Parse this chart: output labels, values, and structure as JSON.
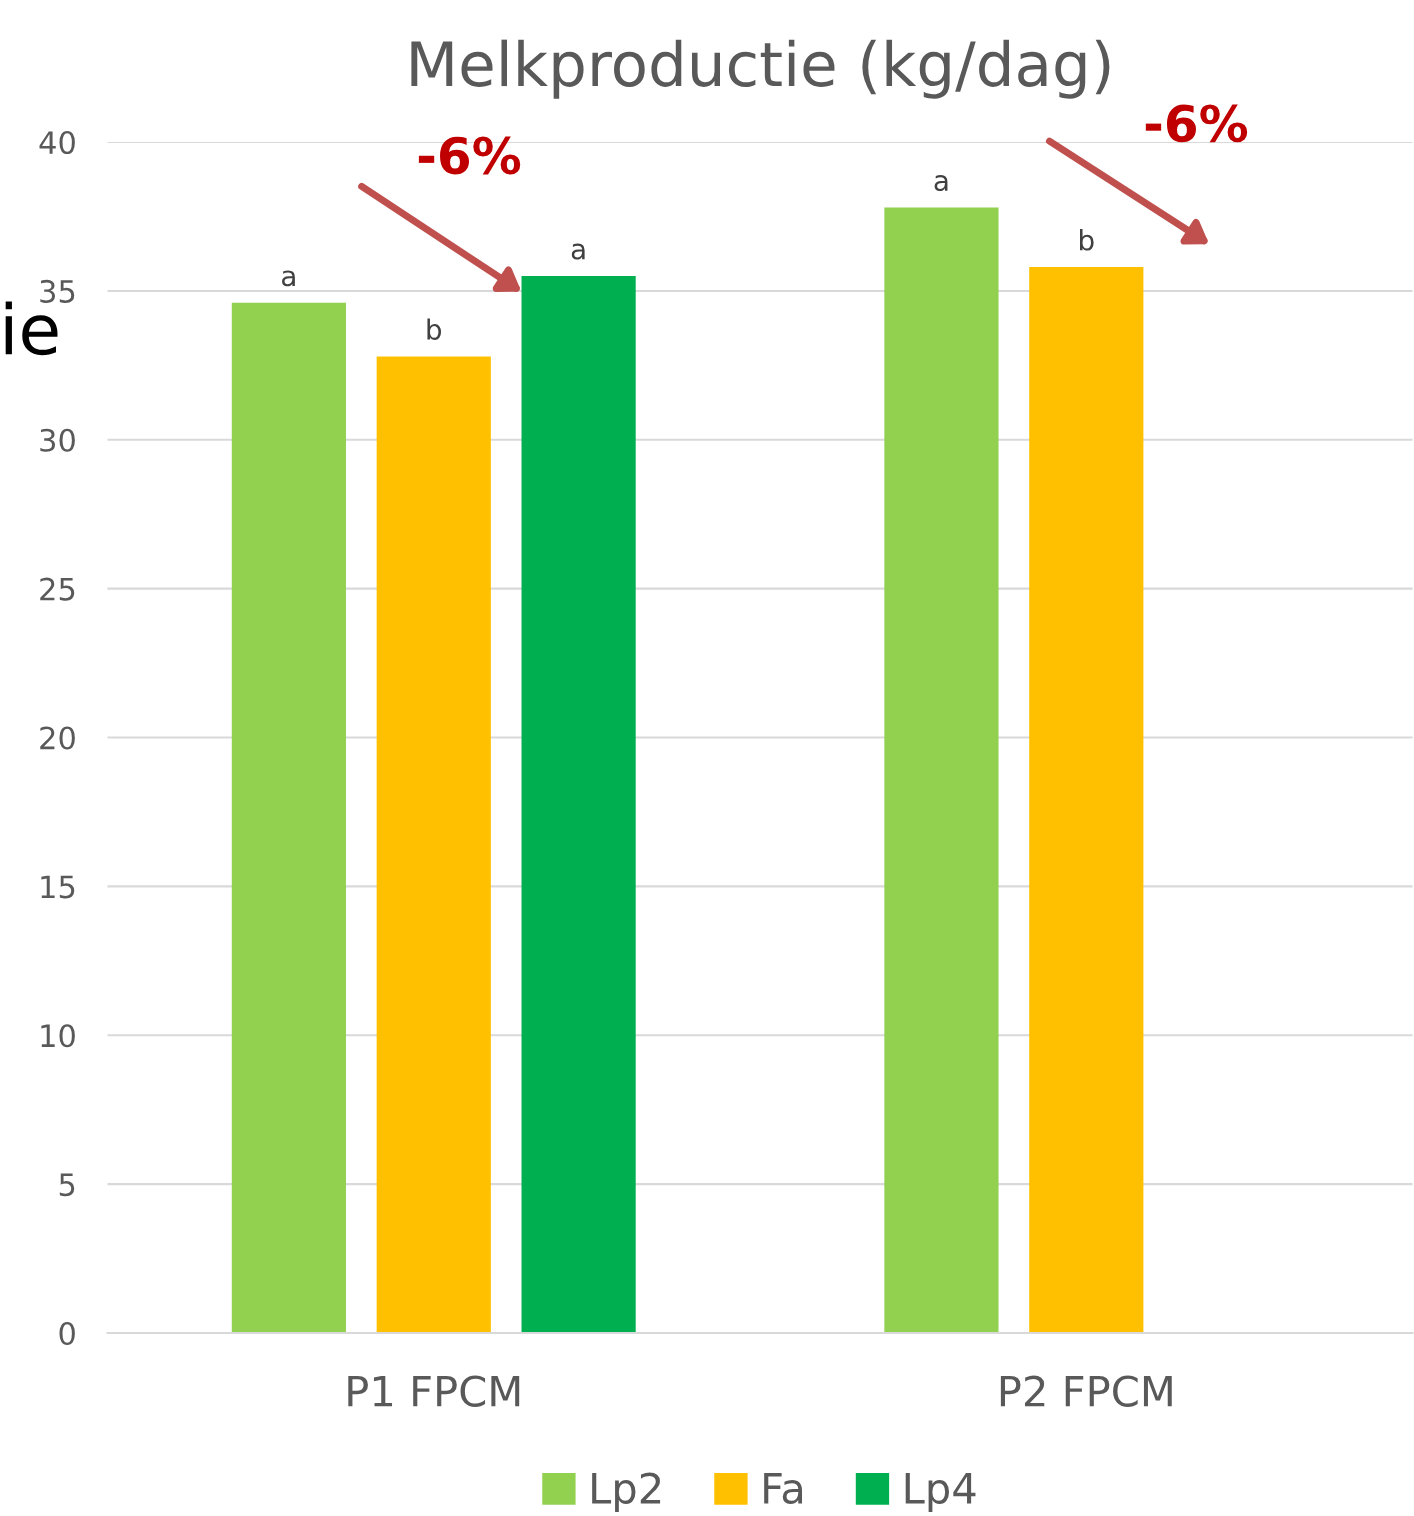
{
  "chart_data": {
    "type": "bar",
    "title": "Melkproductie (kg/dag)",
    "categories": [
      "P1 FPCM",
      "P2 FPCM"
    ],
    "series": [
      {
        "name": "Lp2",
        "color": "#92d050",
        "values": [
          34.6,
          37.8
        ],
        "value_labels": [
          "a",
          "a"
        ]
      },
      {
        "name": "Fa",
        "color": "#ffc000",
        "values": [
          32.8,
          35.8
        ],
        "value_labels": [
          "b",
          "b"
        ]
      },
      {
        "name": "Lp4",
        "color": "#00b050",
        "values": [
          35.5,
          null
        ],
        "value_labels": [
          "a",
          null
        ]
      }
    ],
    "ylim": [
      0,
      40
    ],
    "yticks": [
      0,
      5,
      10,
      15,
      20,
      25,
      30,
      35,
      40
    ],
    "grid": "y",
    "legend": "bottom",
    "annotations": [
      "-6%",
      "-6%",
      "ie"
    ]
  }
}
